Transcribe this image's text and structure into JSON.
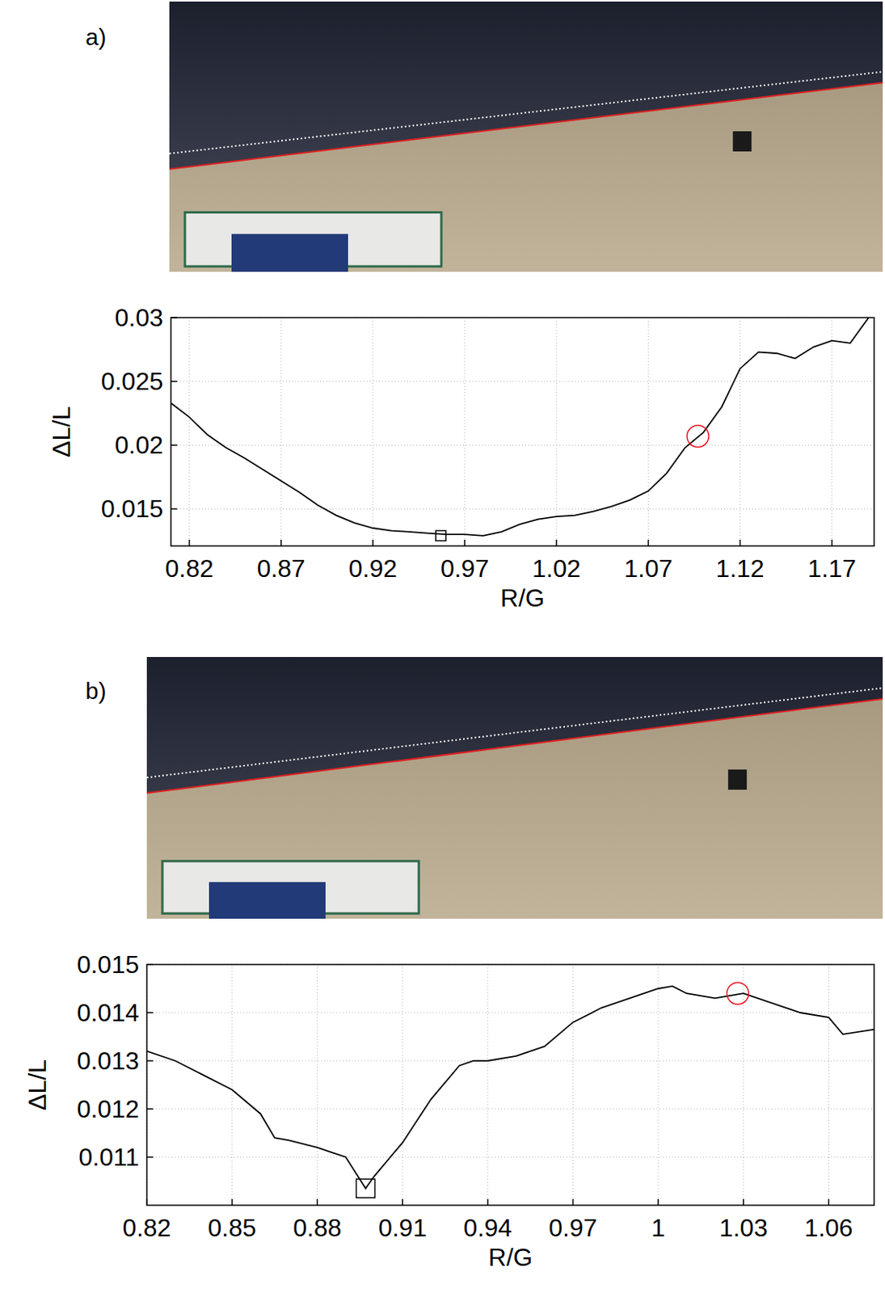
{
  "chart_data": [
    {
      "type": "line",
      "panel": "a)",
      "x_label": "R/G",
      "y_label": "ΔL/L",
      "x": [
        0.81,
        0.82,
        0.83,
        0.84,
        0.85,
        0.86,
        0.87,
        0.88,
        0.89,
        0.9,
        0.91,
        0.92,
        0.93,
        0.94,
        0.95,
        0.96,
        0.97,
        0.98,
        0.99,
        1.0,
        1.01,
        1.02,
        1.03,
        1.04,
        1.05,
        1.06,
        1.07,
        1.08,
        1.09,
        1.1,
        1.11,
        1.12,
        1.13,
        1.14,
        1.15,
        1.16,
        1.17,
        1.18,
        1.19
      ],
      "series": [
        {
          "color": "#000000",
          "values": [
            0.0233,
            0.0222,
            0.0208,
            0.0198,
            0.019,
            0.0181,
            0.0172,
            0.0163,
            0.0153,
            0.0145,
            0.0139,
            0.0135,
            0.0133,
            0.0132,
            0.0131,
            0.013,
            0.013,
            0.0129,
            0.0132,
            0.0138,
            0.0142,
            0.0144,
            0.0145,
            0.0148,
            0.0152,
            0.0157,
            0.0164,
            0.0178,
            0.0198,
            0.021,
            0.023,
            0.026,
            0.0273,
            0.0272,
            0.0268,
            0.0277,
            0.0282,
            0.028,
            0.03
          ]
        }
      ],
      "markers": [
        {
          "x": 0.957,
          "y": 0.0129,
          "marker": "square",
          "color": "#000000"
        },
        {
          "x": 1.097,
          "y": 0.0207,
          "marker": "circle",
          "color": "#e8141e"
        }
      ],
      "xlim": [
        0.81,
        1.193
      ],
      "xticks": [
        0.82,
        0.87,
        0.92,
        0.97,
        1.02,
        1.07,
        1.12,
        1.17
      ],
      "ylim": [
        0.0121,
        0.03
      ],
      "yticks": [
        0.015,
        0.02,
        0.025,
        0.03
      ],
      "grid": true
    },
    {
      "type": "line",
      "panel": "b)",
      "x_label": "R/G",
      "y_label": "ΔL/L",
      "x": [
        0.82,
        0.83,
        0.84,
        0.85,
        0.86,
        0.865,
        0.87,
        0.88,
        0.885,
        0.89,
        0.897,
        0.9,
        0.91,
        0.92,
        0.93,
        0.935,
        0.94,
        0.95,
        0.96,
        0.97,
        0.98,
        0.99,
        1.0,
        1.005,
        1.01,
        1.02,
        1.03,
        1.04,
        1.05,
        1.06,
        1.065,
        1.076
      ],
      "series": [
        {
          "color": "#000000",
          "values": [
            0.0132,
            0.013,
            0.0127,
            0.0124,
            0.0119,
            0.0114,
            0.01135,
            0.0112,
            0.0111,
            0.011,
            0.01035,
            0.0106,
            0.0113,
            0.0122,
            0.0129,
            0.013,
            0.013,
            0.0131,
            0.0133,
            0.0138,
            0.0141,
            0.0143,
            0.0145,
            0.01455,
            0.0144,
            0.0143,
            0.0144,
            0.0142,
            0.014,
            0.0139,
            0.01355,
            0.01365
          ]
        }
      ],
      "markers": [
        {
          "x": 0.897,
          "y": 0.01035,
          "marker": "square",
          "color": "#000000"
        },
        {
          "x": 1.028,
          "y": 0.0144,
          "marker": "circle",
          "color": "#e8141e"
        }
      ],
      "xlim": [
        0.82,
        1.076
      ],
      "xticks": [
        0.82,
        0.85,
        0.88,
        0.91,
        0.94,
        0.97,
        1,
        1.03,
        1.06
      ],
      "ylim": [
        0.01,
        0.015
      ],
      "yticks": [
        0.011,
        0.012,
        0.013,
        0.014,
        0.015
      ],
      "grid": true
    }
  ]
}
